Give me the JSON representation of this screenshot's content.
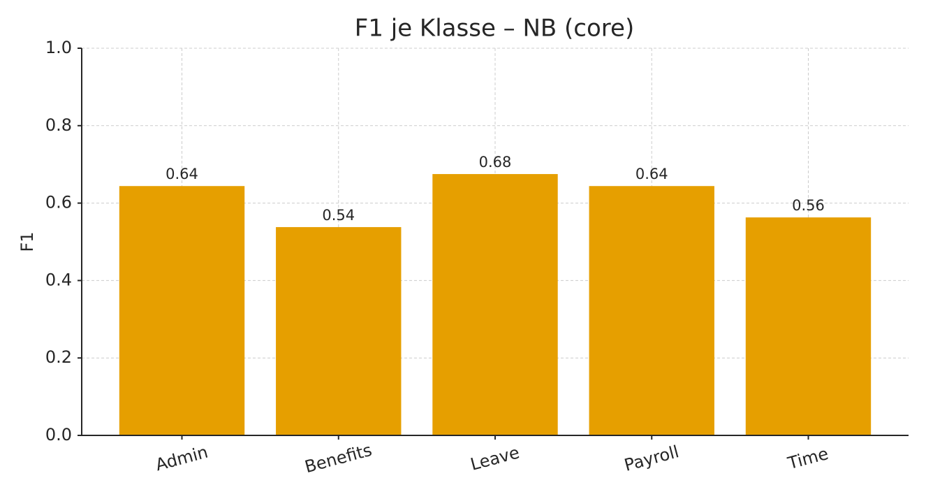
{
  "chart_data": {
    "type": "bar",
    "title": "F1 je Klasse – NB (core)",
    "y_label": "F1",
    "categories": [
      "Admin",
      "Benefits",
      "Leave",
      "Payroll",
      "Time"
    ],
    "values": [
      0.644,
      0.538,
      0.675,
      0.644,
      0.563
    ],
    "value_labels": [
      "0.64",
      "0.54",
      "0.68",
      "0.64",
      "0.56"
    ],
    "color": "#E69F00",
    "ylim": [
      0,
      1
    ],
    "yticks": [
      {
        "value": 0,
        "label": "0.0"
      },
      0.2,
      0.4,
      0.6,
      0.8,
      {
        "value": 1,
        "label": "1.0"
      }
    ],
    "grid": true
  }
}
